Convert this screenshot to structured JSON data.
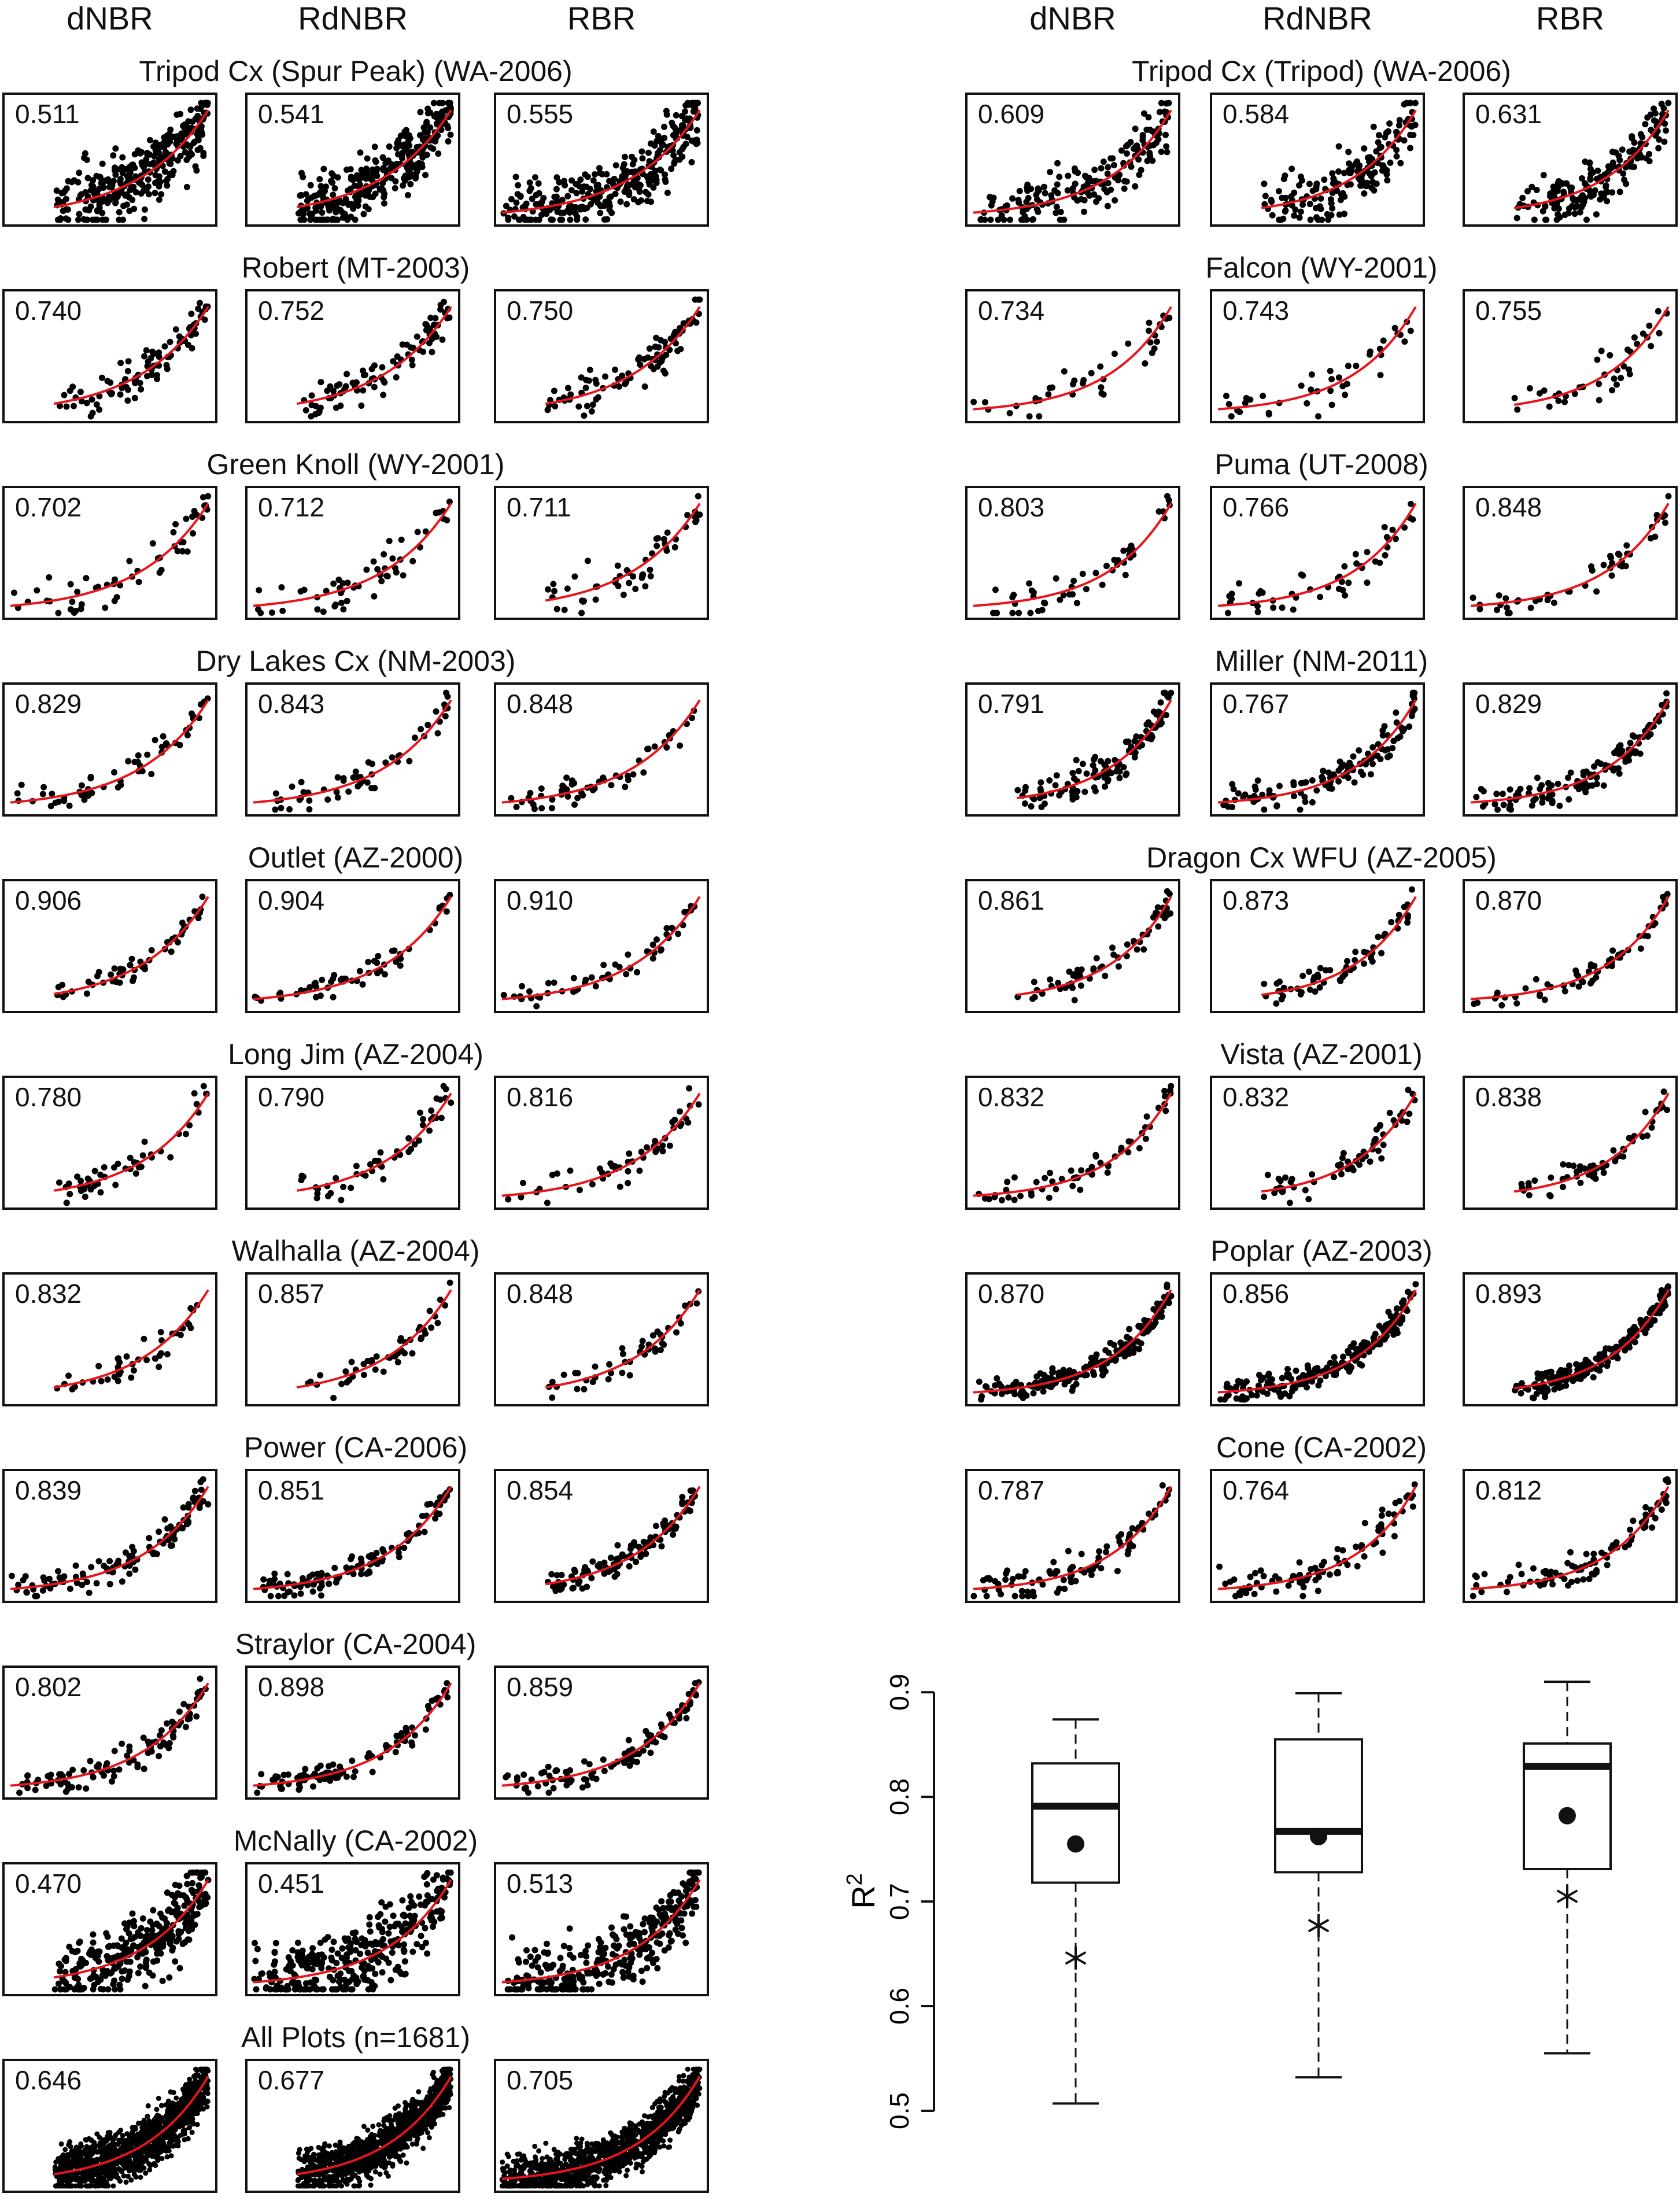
{
  "column_headers": [
    "dNBR",
    "RdNBR",
    "RBR"
  ],
  "fires": [
    {
      "title": "Tripod Cx (Spur Peak) (WA-2006)",
      "r2": [
        "0.511",
        "0.541",
        "0.555"
      ],
      "pts": 320
    },
    {
      "title": "Robert (MT-2003)",
      "r2": [
        "0.740",
        "0.752",
        "0.750"
      ],
      "pts": 90
    },
    {
      "title": "Green Knoll (WY-2001)",
      "r2": [
        "0.702",
        "0.712",
        "0.711"
      ],
      "pts": 55
    },
    {
      "title": "Dry Lakes Cx (NM-2003)",
      "r2": [
        "0.829",
        "0.843",
        "0.848"
      ],
      "pts": 55
    },
    {
      "title": "Outlet (AZ-2000)",
      "r2": [
        "0.906",
        "0.904",
        "0.910"
      ],
      "pts": 55
    },
    {
      "title": "Long Jim (AZ-2004)",
      "r2": [
        "0.780",
        "0.790",
        "0.816"
      ],
      "pts": 50
    },
    {
      "title": "Walhalla (AZ-2004)",
      "r2": [
        "0.832",
        "0.857",
        "0.848"
      ],
      "pts": 45
    },
    {
      "title": "Power (CA-2006)",
      "r2": [
        "0.839",
        "0.851",
        "0.854"
      ],
      "pts": 110
    },
    {
      "title": "Straylor (CA-2004)",
      "r2": [
        "0.802",
        "0.898",
        "0.859"
      ],
      "pts": 100
    },
    {
      "title": "McNally (CA-2002)",
      "r2": [
        "0.470",
        "0.451",
        "0.513"
      ],
      "pts": 320
    },
    {
      "title": "All Plots (n=1681)",
      "r2": [
        "0.646",
        "0.677",
        "0.705"
      ],
      "pts": 1200
    },
    {
      "title": "Tripod Cx (Tripod) (WA-2006)",
      "r2": [
        "0.609",
        "0.584",
        "0.631"
      ],
      "pts": 180
    },
    {
      "title": "Falcon (WY-2001)",
      "r2": [
        "0.734",
        "0.743",
        "0.755"
      ],
      "pts": 40
    },
    {
      "title": "Puma (UT-2008)",
      "r2": [
        "0.803",
        "0.766",
        "0.848"
      ],
      "pts": 50
    },
    {
      "title": "Miller (NM-2011)",
      "r2": [
        "0.791",
        "0.767",
        "0.829"
      ],
      "pts": 120
    },
    {
      "title": "Dragon Cx WFU (AZ-2005)",
      "r2": [
        "0.861",
        "0.873",
        "0.870"
      ],
      "pts": 60
    },
    {
      "title": "Vista (AZ-2001)",
      "r2": [
        "0.832",
        "0.832",
        "0.838"
      ],
      "pts": 60
    },
    {
      "title": "Poplar (AZ-2003)",
      "r2": [
        "0.870",
        "0.856",
        "0.893"
      ],
      "pts": 200
    },
    {
      "title": "Cone (CA-2002)",
      "r2": [
        "0.787",
        "0.764",
        "0.812"
      ],
      "pts": 90
    }
  ],
  "chart_data": {
    "type": "box",
    "ylabel": "R",
    "ylabel_superscript": "2",
    "ylim": [
      0.5,
      0.92
    ],
    "yticks": [
      "0.5",
      "0.6",
      "0.7",
      "0.8",
      "0.9"
    ],
    "categories": [
      "dNBR",
      "RdNBR",
      "RBR"
    ],
    "boxes": [
      {
        "whisker_low": 0.507,
        "q1": 0.718,
        "median": 0.791,
        "q3": 0.832,
        "whisker_high": 0.874,
        "mean": 0.755,
        "outlier": 0.646
      },
      {
        "whisker_low": 0.532,
        "q1": 0.728,
        "median": 0.767,
        "q3": 0.855,
        "whisker_high": 0.899,
        "mean": 0.762,
        "outlier": 0.677
      },
      {
        "whisker_low": 0.555,
        "q1": 0.731,
        "median": 0.829,
        "q3": 0.851,
        "whisker_high": 0.91,
        "mean": 0.782,
        "outlier": 0.705
      }
    ]
  }
}
